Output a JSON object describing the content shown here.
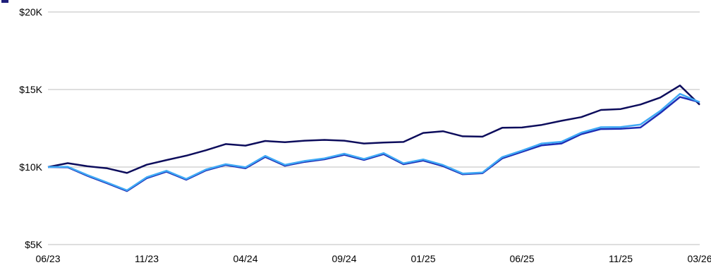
{
  "chart_data": {
    "type": "line",
    "x": [
      "06/23",
      "07/23",
      "08/23",
      "09/23",
      "10/23",
      "11/23",
      "12/23",
      "01/24",
      "02/24",
      "03/24",
      "04/24",
      "05/24",
      "06/24",
      "07/24",
      "08/24",
      "09/24",
      "10/24",
      "11/24",
      "12/24",
      "01/25",
      "02/25",
      "03/25",
      "04/25",
      "05/25",
      "06/25",
      "07/25",
      "08/25",
      "09/25",
      "10/25",
      "11/25",
      "12/25",
      "01/26",
      "02/26",
      "03/26"
    ],
    "x_tick_labels": [
      "06/23",
      "11/23",
      "04/24",
      "09/24",
      "01/25",
      "06/25",
      "11/25",
      "03/26"
    ],
    "y_tick_labels": [
      "$5K",
      "$10K",
      "$15K",
      "$20K"
    ],
    "y_ticks": [
      5000,
      10000,
      15000,
      20000
    ],
    "ylim": [
      5000,
      20000
    ],
    "grid": true,
    "series": [
      {
        "color": "#0d0d5c",
        "values": [
          10000,
          10250,
          10050,
          9920,
          9620,
          10150,
          10450,
          10730,
          11080,
          11480,
          11380,
          11680,
          11600,
          11700,
          11750,
          11700,
          11520,
          11580,
          11620,
          12200,
          12310,
          11980,
          11960,
          12530,
          12550,
          12720,
          12980,
          13220,
          13680,
          13740,
          14030,
          14480,
          15260,
          14020
        ]
      },
      {
        "color": "#1e2db4",
        "values": [
          10000,
          9980,
          9430,
          8950,
          8450,
          9280,
          9700,
          9180,
          9780,
          10130,
          9920,
          10650,
          10080,
          10330,
          10500,
          10790,
          10460,
          10830,
          10180,
          10420,
          10060,
          9530,
          9600,
          10560,
          10980,
          11400,
          11520,
          12120,
          12450,
          12470,
          12550,
          13480,
          14520,
          14180
        ]
      },
      {
        "color": "#3fa9f5",
        "values": [
          10000,
          10020,
          9480,
          9000,
          8500,
          9340,
          9760,
          9230,
          9840,
          10180,
          9980,
          10720,
          10140,
          10390,
          10560,
          10860,
          10520,
          10900,
          10240,
          10490,
          10130,
          9580,
          9650,
          10640,
          11060,
          11520,
          11630,
          12220,
          12570,
          12580,
          12740,
          13620,
          14720,
          14180
        ]
      }
    ]
  }
}
